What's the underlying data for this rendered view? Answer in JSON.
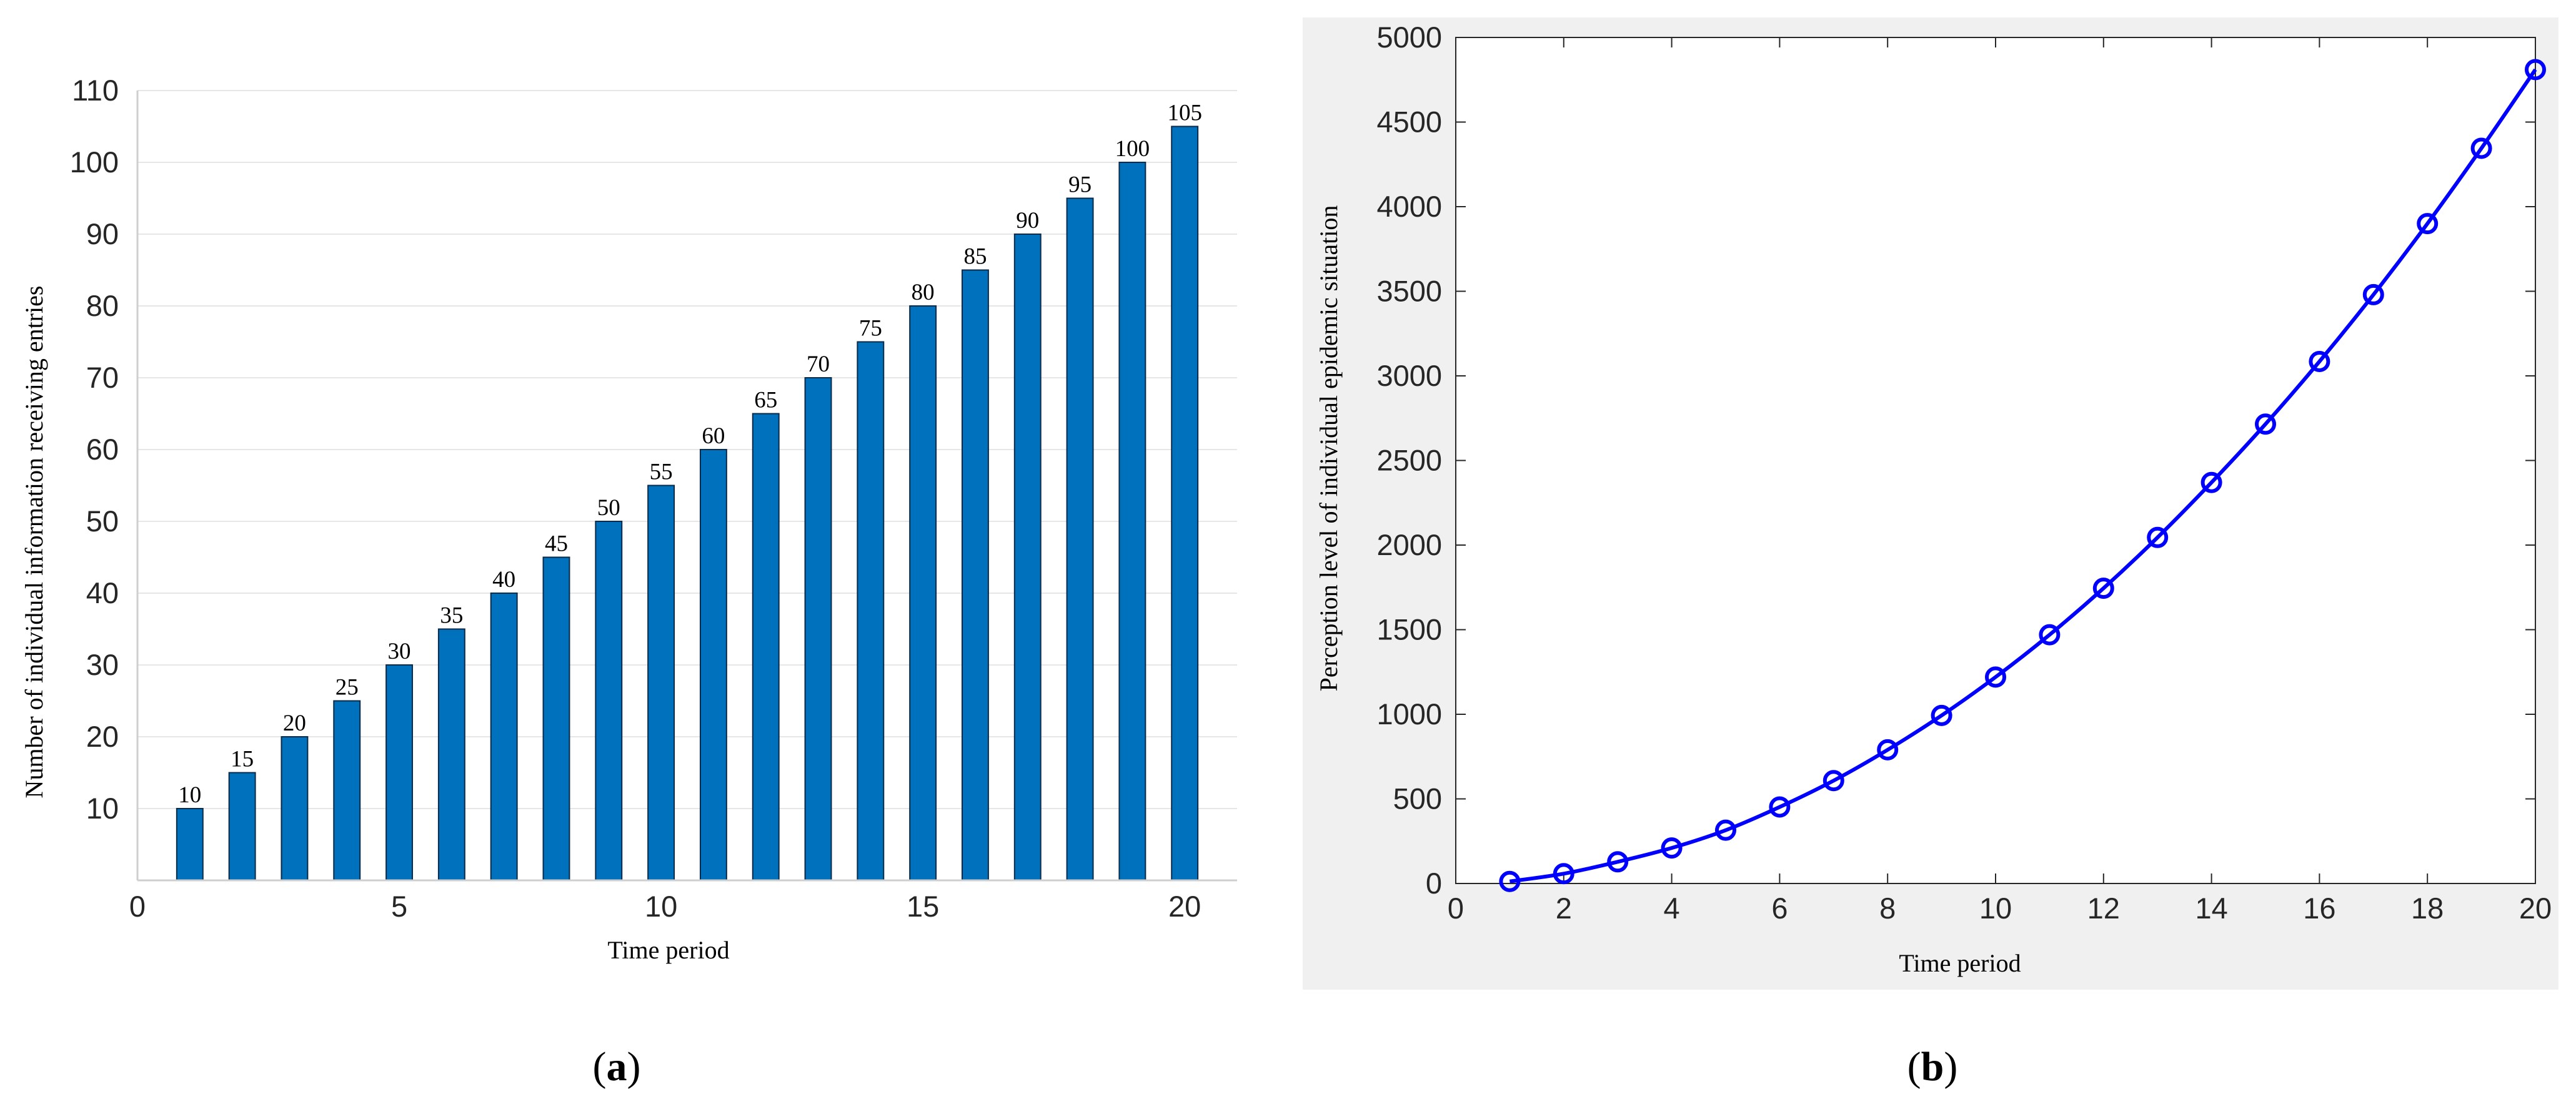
{
  "chart_data": [
    {
      "type": "bar",
      "panel_label": "a",
      "xlabel": "Time period",
      "ylabel": "Number of individual information receiving entries",
      "x": [
        1,
        2,
        3,
        4,
        5,
        6,
        7,
        8,
        9,
        10,
        11,
        12,
        13,
        14,
        15,
        16,
        17,
        18,
        19,
        20
      ],
      "values": [
        10,
        15,
        20,
        25,
        30,
        35,
        40,
        45,
        50,
        55,
        60,
        65,
        70,
        75,
        80,
        85,
        90,
        95,
        100,
        105
      ],
      "xlim": [
        0,
        21
      ],
      "ylim": [
        0,
        110
      ],
      "xticks": [
        0,
        5,
        10,
        15,
        20
      ],
      "yticks": [
        10,
        20,
        30,
        40,
        50,
        60,
        70,
        80,
        90,
        100,
        110
      ],
      "grid": "horizontal",
      "data_labels": true,
      "bar_color": "#0072BD"
    },
    {
      "type": "line",
      "panel_label": "b",
      "xlabel": "Time period",
      "ylabel": "Perception level of individual epidemic situation",
      "x": [
        1,
        2,
        3,
        4,
        5,
        6,
        7,
        8,
        9,
        10,
        11,
        12,
        13,
        14,
        15,
        16,
        17,
        18,
        19,
        20
      ],
      "y": [
        12,
        58,
        128,
        210,
        315,
        452,
        608,
        790,
        993,
        1220,
        1470,
        1745,
        2045,
        2370,
        2715,
        3085,
        3480,
        3900,
        4345,
        4810
      ],
      "xlim": [
        0,
        20
      ],
      "ylim": [
        0,
        5000
      ],
      "xticks": [
        0,
        2,
        4,
        6,
        8,
        10,
        12,
        14,
        16,
        18,
        20
      ],
      "yticks": [
        0,
        500,
        1000,
        1500,
        2000,
        2500,
        3000,
        3500,
        4000,
        4500,
        5000
      ],
      "grid": false,
      "marker": "circle",
      "line_color": "#0000FF",
      "background": "#F0F0F0"
    }
  ]
}
